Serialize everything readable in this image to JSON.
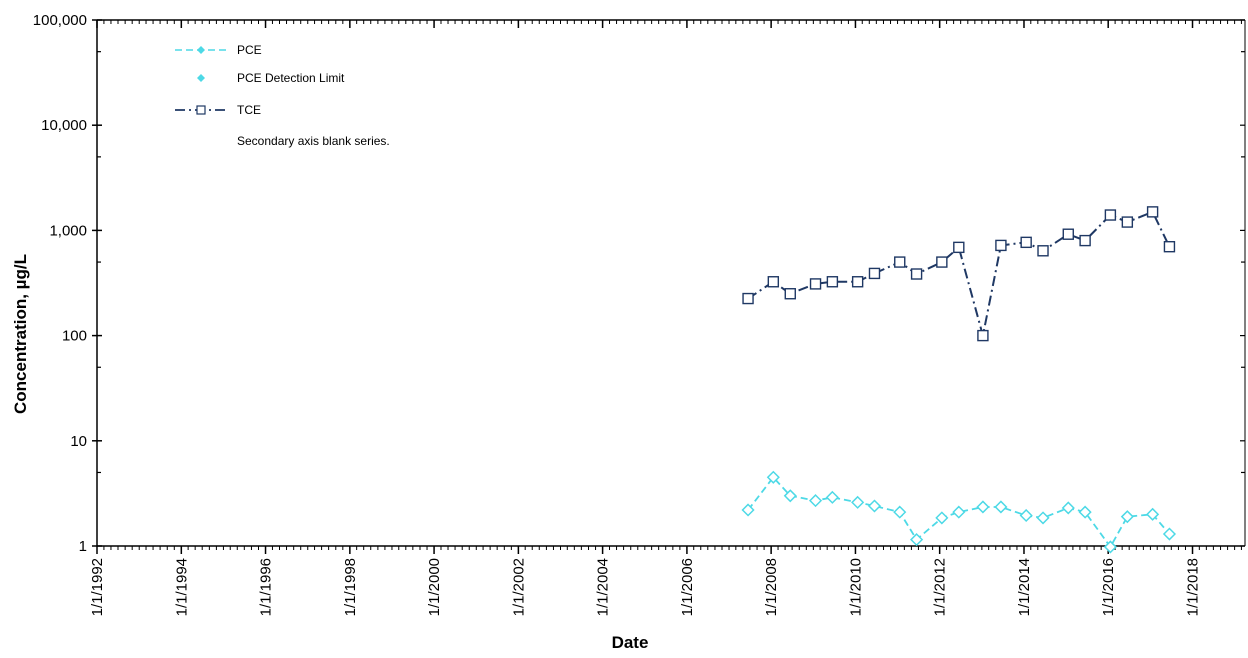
{
  "chart_data": {
    "type": "line",
    "y_scale": "log",
    "ylim": [
      1,
      100000
    ],
    "xlim": [
      "1992-01-01",
      "2019-04-01"
    ],
    "xlabel": "Date",
    "ylabel": "Concentration, µg/L",
    "y_tick_labels": [
      "1",
      "10",
      "100",
      "1,000",
      "10,000",
      "100,000"
    ],
    "y_tick_values": [
      1,
      10,
      100,
      1000,
      10000,
      100000
    ],
    "x_tick_labels": [
      "1/1/1992",
      "1/1/1994",
      "1/1/1996",
      "1/1/1998",
      "1/1/2000",
      "1/1/2002",
      "1/1/2004",
      "1/1/2006",
      "1/1/2008",
      "1/1/2010",
      "1/1/2012",
      "1/1/2014",
      "1/1/2016",
      "1/1/2018"
    ],
    "x_tick_dates": [
      "1992-01-01",
      "1994-01-01",
      "1996-01-01",
      "1998-01-01",
      "2000-01-01",
      "2002-01-01",
      "2004-01-01",
      "2006-01-01",
      "2008-01-01",
      "2010-01-01",
      "2012-01-01",
      "2014-01-01",
      "2016-01-01",
      "2018-01-01"
    ],
    "grid": false,
    "legend_position": "top-left",
    "legend": [
      {
        "label": "PCE"
      },
      {
        "label": "PCE Detection Limit"
      },
      {
        "label": "TCE"
      },
      {
        "label": "Secondary axis blank series."
      }
    ],
    "series": [
      {
        "name": "TCE",
        "color": "#1f3864",
        "marker": "square",
        "points": [
          [
            "2007-06-15",
            225
          ],
          [
            "2008-01-20",
            325
          ],
          [
            "2008-06-15",
            250
          ],
          [
            "2009-01-20",
            310
          ],
          [
            "2009-06-15",
            325
          ],
          [
            "2010-01-20",
            325
          ],
          [
            "2010-06-15",
            390
          ],
          [
            "2011-01-20",
            500
          ],
          [
            "2011-06-15",
            385
          ],
          [
            "2012-01-20",
            500
          ],
          [
            "2012-06-15",
            690
          ],
          [
            "2013-01-10",
            100
          ],
          [
            "2013-06-15",
            720
          ],
          [
            "2014-01-20",
            770
          ],
          [
            "2014-06-15",
            640
          ],
          [
            "2015-01-20",
            920
          ],
          [
            "2015-06-15",
            800
          ],
          [
            "2016-01-20",
            1400
          ],
          [
            "2016-06-15",
            1200
          ],
          [
            "2017-01-20",
            1500
          ],
          [
            "2017-06-15",
            700
          ]
        ]
      },
      {
        "name": "PCE",
        "color": "#4dd9e6",
        "marker": "diamond",
        "points": [
          [
            "2007-06-15",
            2.2
          ],
          [
            "2008-01-20",
            4.5
          ],
          [
            "2008-06-15",
            3.0
          ],
          [
            "2009-01-20",
            2.7
          ],
          [
            "2009-06-15",
            2.9
          ],
          [
            "2010-01-20",
            2.6
          ],
          [
            "2010-06-15",
            2.4
          ],
          [
            "2011-01-20",
            2.1
          ],
          [
            "2011-06-15",
            1.15
          ],
          [
            "2012-01-20",
            1.85
          ],
          [
            "2012-06-15",
            2.1
          ],
          [
            "2013-01-10",
            2.35
          ],
          [
            "2013-06-15",
            2.35
          ],
          [
            "2014-01-20",
            1.95
          ],
          [
            "2014-06-15",
            1.85
          ],
          [
            "2015-01-20",
            2.3
          ],
          [
            "2015-06-15",
            2.1
          ],
          [
            "2016-01-20",
            0.98
          ],
          [
            "2016-06-15",
            1.9
          ],
          [
            "2017-01-20",
            2.0
          ],
          [
            "2017-06-15",
            1.3
          ]
        ]
      }
    ]
  }
}
